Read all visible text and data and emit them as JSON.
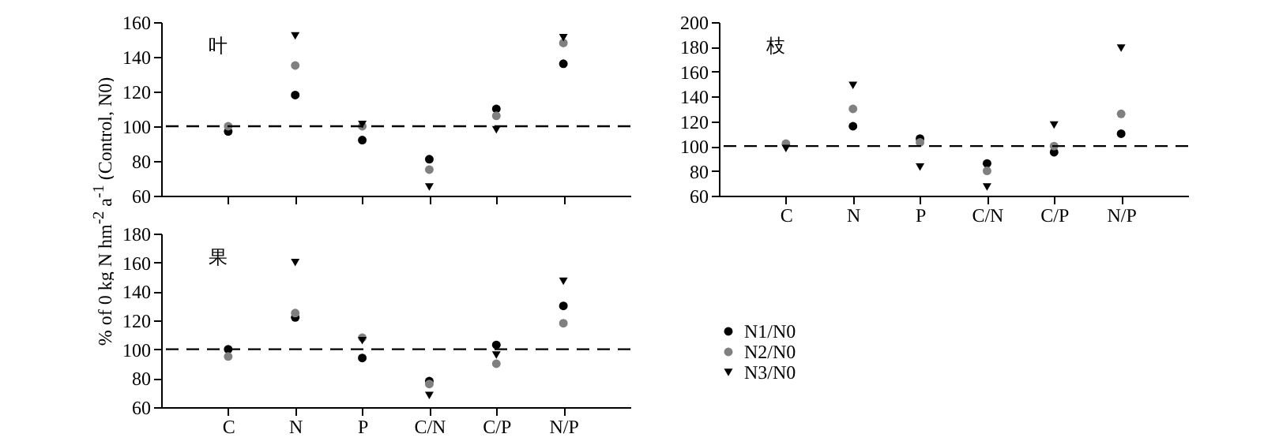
{
  "chart_data": [
    {
      "type": "scatter",
      "title": "叶",
      "ylabel": "% of 0 kg N hm$^{-2}$ a$^{-1}$ (Control, N0)",
      "categories": [
        null,
        null,
        null,
        null,
        null,
        null
      ],
      "ylim": [
        60,
        160
      ],
      "yticks": [
        60,
        80,
        100,
        120,
        140,
        160
      ],
      "grid": false,
      "ref_lines": [
        {
          "axis": "y",
          "value": 100,
          "line_style": "dashed",
          "color": "#000000"
        }
      ],
      "series": [
        {
          "color": "#000000",
          "marker": "circle",
          "values": [
            97,
            118,
            92,
            81,
            110,
            136
          ]
        },
        {
          "color": "#808080",
          "marker": "circle",
          "values": [
            100,
            135,
            100,
            75,
            106,
            148
          ]
        },
        {
          "color": "#000000",
          "marker": "triangle",
          "values": [
            null,
            152,
            101,
            65,
            98,
            151
          ]
        }
      ]
    },
    {
      "type": "scatter",
      "title": "枝",
      "categories": [
        "C",
        "N",
        "P",
        "C/N",
        "C/P",
        "N/P"
      ],
      "ylim": [
        60,
        200
      ],
      "yticks": [
        60,
        80,
        100,
        120,
        140,
        160,
        180,
        200
      ],
      "grid": false,
      "legend": "bottom",
      "ref_lines": [
        {
          "axis": "y",
          "value": 100,
          "line_style": "dashed",
          "color": "#000000"
        }
      ],
      "series": [
        {
          "name": "N1/N0",
          "color": "#000000",
          "marker": "circle",
          "values": [
            null,
            116,
            106,
            86,
            95,
            110
          ]
        },
        {
          "name": "N2/N0",
          "color": "#808080",
          "marker": "circle",
          "values": [
            102,
            130,
            103,
            80,
            100,
            126
          ]
        },
        {
          "name": "N3/N0",
          "color": "#000000",
          "marker": "triangle",
          "values": [
            98,
            149,
            83,
            67,
            117,
            179
          ]
        }
      ]
    },
    {
      "type": "scatter",
      "title": "果",
      "categories": [
        "C",
        "N",
        "P",
        "C/N",
        "C/P",
        "N/P"
      ],
      "ylim": [
        60,
        180
      ],
      "yticks": [
        60,
        80,
        100,
        120,
        140,
        160,
        180
      ],
      "grid": false,
      "ref_lines": [
        {
          "axis": "y",
          "value": 100,
          "line_style": "dashed",
          "color": "#000000"
        }
      ],
      "series": [
        {
          "color": "#000000",
          "marker": "circle",
          "values": [
            100,
            122,
            94,
            78,
            103,
            130
          ]
        },
        {
          "color": "#808080",
          "marker": "circle",
          "values": [
            95,
            125,
            108,
            76,
            90,
            118
          ]
        },
        {
          "color": "#000000",
          "marker": "triangle",
          "values": [
            null,
            160,
            106,
            68,
            96,
            147
          ]
        }
      ]
    }
  ]
}
